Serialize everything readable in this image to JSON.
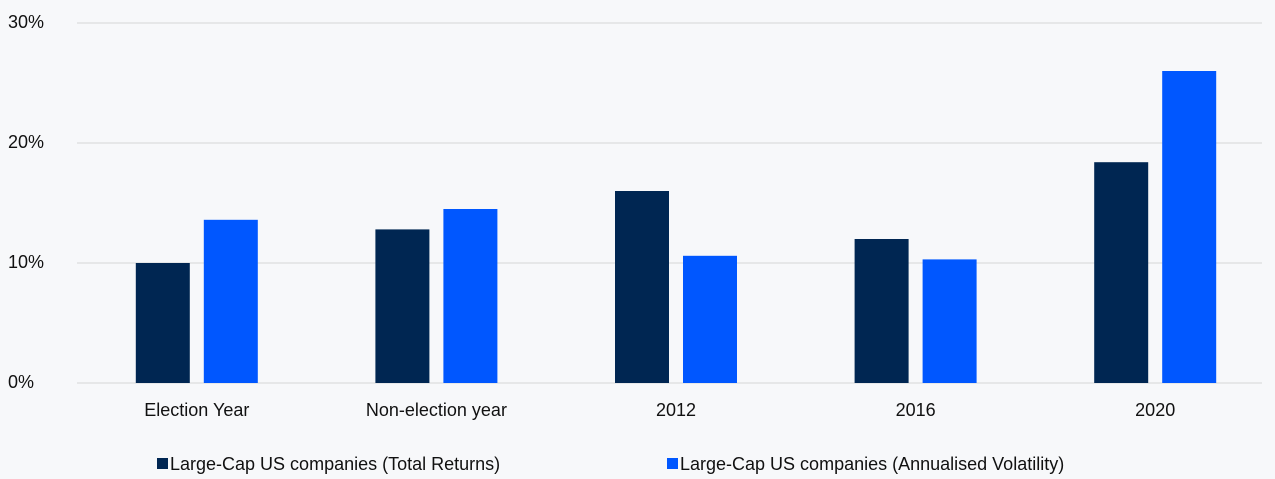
{
  "chart_data": {
    "type": "bar",
    "categories": [
      "Election Year",
      "Non-election year",
      "2012",
      "2016",
      "2020"
    ],
    "series": [
      {
        "name": "Large-Cap US companies (Total Returns)",
        "color": "#002652",
        "values": [
          10,
          12.8,
          16,
          12,
          18.4
        ]
      },
      {
        "name": "Large-Cap US companies (Annualised Volatility)",
        "color": "#0057ff",
        "values": [
          13.6,
          14.5,
          10.6,
          10.3,
          26
        ]
      }
    ],
    "ylim": [
      0,
      30
    ],
    "yticks": [
      {
        "value": 0,
        "label": "0%"
      },
      {
        "value": 10,
        "label": "10%"
      },
      {
        "value": 20,
        "label": "20%"
      },
      {
        "value": 30,
        "label": "30%"
      }
    ],
    "grid": true,
    "legend": "bottom"
  }
}
